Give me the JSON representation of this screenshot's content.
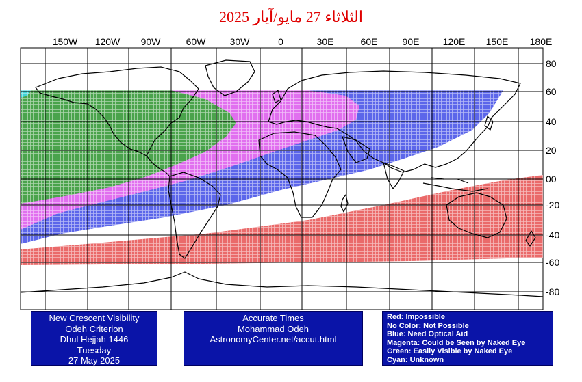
{
  "title": "الثلاثاء 27 مايو/آيار 2025",
  "map": {
    "lon_labels": [
      "150W",
      "120W",
      "90W",
      "60W",
      "30W",
      "0",
      "30E",
      "60E",
      "90E",
      "120E",
      "150E",
      "180E"
    ],
    "lat_labels": [
      "80",
      "60",
      "40",
      "20",
      "00",
      "-20",
      "-40",
      "-60",
      "-80"
    ],
    "zone_colors": {
      "red": "#e85a5a",
      "blue": "#4a55e8",
      "magenta": "#f070f0",
      "green": "#3aa83a",
      "cyan": "#40d8e8"
    }
  },
  "boxes": {
    "left": [
      "New Crescent Visibility",
      "Odeh Criterion",
      "Dhul Hejjah 1446",
      "Tuesday",
      "27 May 2025"
    ],
    "middle": [
      "Accurate Times",
      "Mohammad Odeh",
      "AstronomyCenter.net/accut.html"
    ],
    "legend": [
      "Red: Impossible",
      "No Color: Not Possible",
      "Blue: Need Optical Aid",
      "Magenta: Could be Seen by Naked Eye",
      "Green: Easily Visible by Naked Eye",
      "Cyan: Unknown"
    ]
  }
}
